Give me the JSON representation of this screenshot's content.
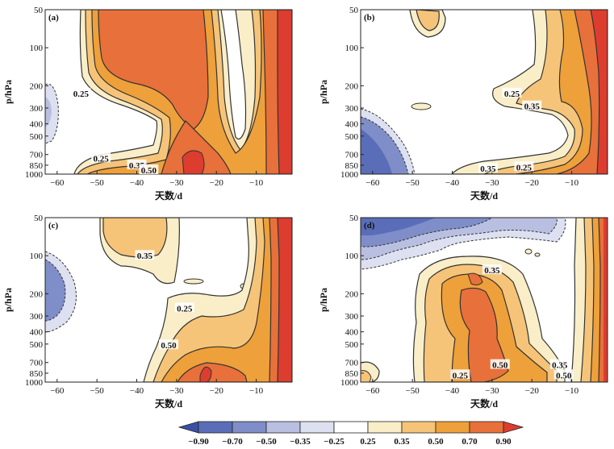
{
  "colors": {
    "n090": "#3b4fa3",
    "n070": "#5a6db8",
    "n050": "#7f8dc8",
    "n035": "#b9bfe0",
    "n025": "#dde0f0",
    "zero": "#ffffff",
    "p025": "#f9eec8",
    "p035": "#f6c478",
    "p050": "#eea03a",
    "p070": "#e8703a",
    "p090": "#dc3d2f",
    "line": "#333333"
  },
  "chart_data": [
    {
      "type": "contour",
      "panel_label": "(a)",
      "xlabel": "天数/d",
      "ylabel": "p/hPa",
      "x_ticks": [
        -60,
        -50,
        -40,
        -30,
        -20,
        -10
      ],
      "y_ticks": [
        50,
        100,
        200,
        300,
        400,
        500,
        700,
        850,
        1000
      ],
      "xlim": [
        -63,
        -1
      ],
      "ylim": [
        50,
        1000
      ],
      "contour_labels": [
        {
          "text": "0.25",
          "x": -54,
          "p": 230
        },
        {
          "text": "0.25",
          "x": -49,
          "p": 750
        },
        {
          "text": "0.35",
          "x": -40,
          "p": 850
        },
        {
          "text": "0.50",
          "x": -37,
          "p": 930
        }
      ]
    },
    {
      "type": "contour",
      "panel_label": "(b)",
      "xlabel": "天数/d",
      "ylabel": "p/hPa",
      "x_ticks": [
        -60,
        -50,
        -40,
        -30,
        -20,
        -10
      ],
      "y_ticks": [
        50,
        100,
        200,
        300,
        400,
        500,
        700,
        850,
        1000
      ],
      "xlim": [
        -63,
        -1
      ],
      "ylim": [
        50,
        1000
      ],
      "contour_labels": [
        {
          "text": "0.25",
          "x": -25,
          "p": 230
        },
        {
          "text": "0.35",
          "x": -20,
          "p": 290
        },
        {
          "text": "0.35",
          "x": -31,
          "p": 900
        },
        {
          "text": "0.25",
          "x": -22,
          "p": 880
        }
      ]
    },
    {
      "type": "contour",
      "panel_label": "(c)",
      "xlabel": "天数/d",
      "ylabel": "p/hPa",
      "x_ticks": [
        -60,
        -50,
        -40,
        -30,
        -20,
        -10
      ],
      "y_ticks": [
        50,
        100,
        200,
        300,
        400,
        500,
        700,
        850,
        1000
      ],
      "xlim": [
        -63,
        -1
      ],
      "ylim": [
        50,
        1000
      ],
      "contour_labels": [
        {
          "text": "0.35",
          "x": -38,
          "p": 100
        },
        {
          "text": "0.25",
          "x": -28,
          "p": 260
        },
        {
          "text": "0.50",
          "x": -32,
          "p": 510
        }
      ]
    },
    {
      "type": "contour",
      "panel_label": "(d)",
      "xlabel": "天数/d",
      "ylabel": "p/hPa",
      "x_ticks": [
        -60,
        -50,
        -40,
        -30,
        -20,
        -10
      ],
      "y_ticks": [
        50,
        100,
        200,
        300,
        400,
        500,
        700,
        850,
        1000
      ],
      "xlim": [
        -63,
        -1
      ],
      "ylim": [
        50,
        1000
      ],
      "contour_labels": [
        {
          "text": "0.35",
          "x": -30,
          "p": 130
        },
        {
          "text": "0.50",
          "x": -28,
          "p": 730
        },
        {
          "text": "0.25",
          "x": -38,
          "p": 880
        },
        {
          "text": "0.35",
          "x": -13,
          "p": 730
        },
        {
          "text": "0.50",
          "x": -12,
          "p": 880
        }
      ]
    }
  ],
  "colorbar": {
    "labels": [
      "-0.90",
      "-0.70",
      "-0.50",
      "-0.35",
      "-0.25",
      "0.25",
      "0.35",
      "0.50",
      "0.70",
      "0.90"
    ],
    "fills": [
      "#3b4fa3",
      "#5a6db8",
      "#7f8dc8",
      "#b9bfe0",
      "#dde0f0",
      "#ffffff",
      "#f9eec8",
      "#f6c478",
      "#eea03a",
      "#e8703a",
      "#dc3d2f"
    ]
  }
}
